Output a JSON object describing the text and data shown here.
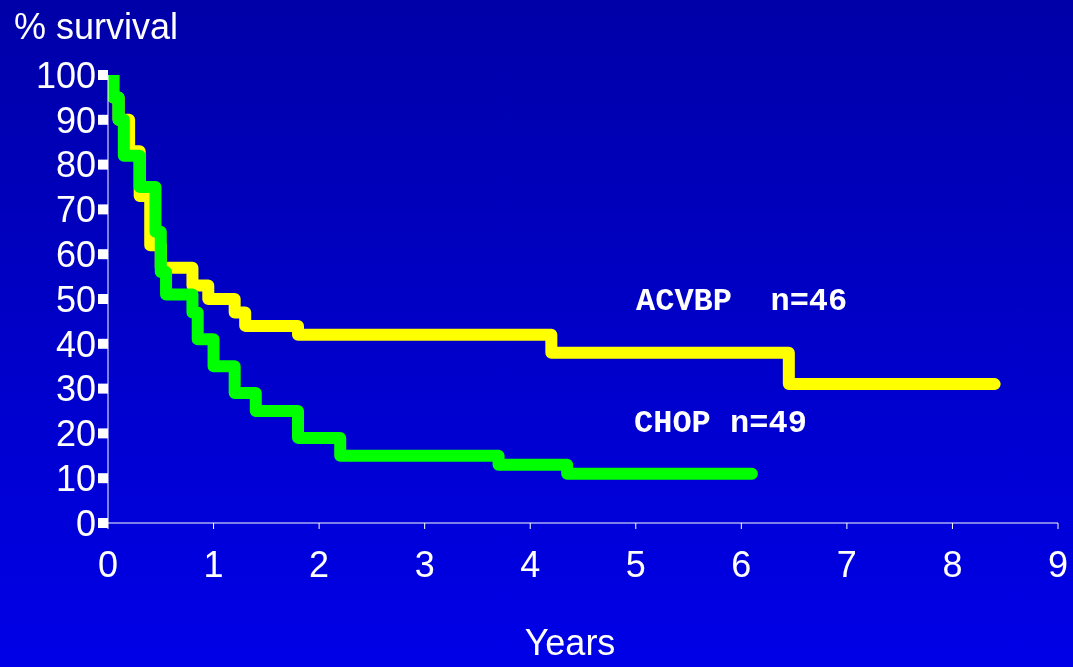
{
  "chart_data": {
    "type": "step",
    "ylabel": "% survival",
    "xlabel": "Years",
    "xlim": [
      0,
      9
    ],
    "xticks": [
      0,
      1,
      2,
      3,
      4,
      5,
      6,
      7,
      8,
      9
    ],
    "ylim": [
      0,
      100
    ],
    "yticks": [
      0,
      10,
      20,
      30,
      40,
      50,
      60,
      70,
      80,
      90,
      100
    ],
    "series": [
      {
        "name": "ACVBP  n=46",
        "color": "#ffff00",
        "x": [
          0,
          0.05,
          0.1,
          0.2,
          0.3,
          0.4,
          0.5,
          0.8,
          0.95,
          1.2,
          1.3,
          1.8,
          4.2,
          6.45,
          8.4
        ],
        "values": [
          100,
          95,
          90,
          83,
          73,
          62,
          57,
          53,
          50,
          47,
          44,
          42,
          38,
          31,
          31
        ]
      },
      {
        "name": "CHOP n=49",
        "color": "#00ff00",
        "x": [
          0,
          0.05,
          0.1,
          0.15,
          0.3,
          0.45,
          0.5,
          0.55,
          0.8,
          0.85,
          1.0,
          1.2,
          1.4,
          1.8,
          2.2,
          3.7,
          4.35,
          6.1
        ],
        "values": [
          100,
          95,
          90,
          82,
          75,
          65,
          56,
          51,
          47,
          41,
          35,
          29,
          25,
          19,
          15,
          13,
          11,
          11
        ]
      }
    ]
  }
}
